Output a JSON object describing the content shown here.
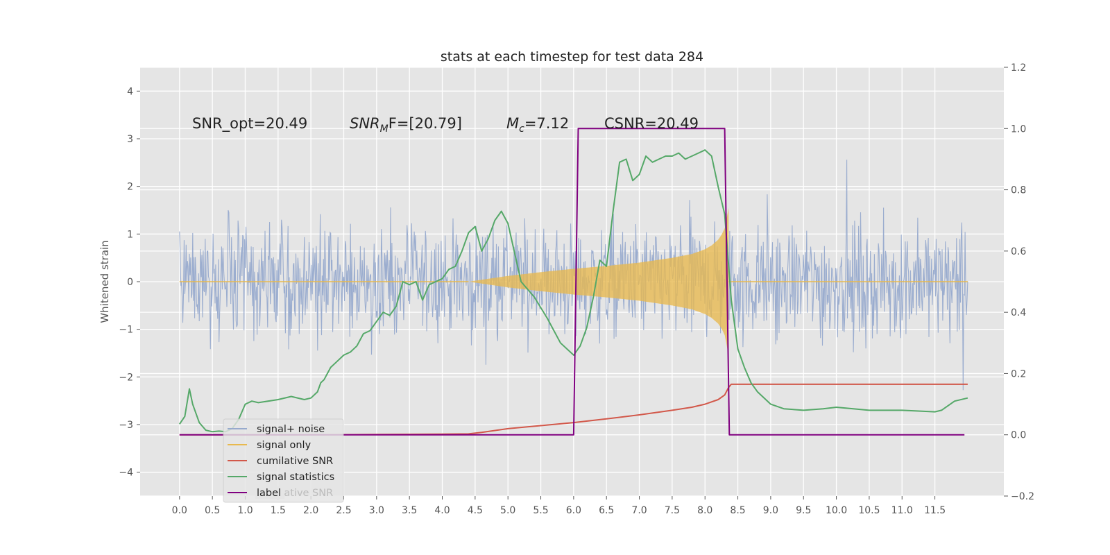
{
  "chart_data": {
    "type": "line",
    "title": "stats at each timestep for test data 284",
    "ylabel": "Whitened strain",
    "xlim": [
      -0.6,
      12.55
    ],
    "ylim": [
      -4.5,
      4.5
    ],
    "y2lim": [
      -0.2,
      1.2
    ],
    "x_ticks": [
      0.0,
      0.5,
      1.0,
      1.5,
      2.0,
      2.5,
      3.0,
      3.5,
      4.0,
      4.5,
      5.0,
      5.5,
      6.0,
      6.5,
      7.0,
      7.5,
      8.0,
      8.5,
      9.0,
      9.5,
      10.0,
      10.5,
      11.0,
      11.5
    ],
    "y_ticks": [
      -4,
      -3,
      -2,
      -1,
      0,
      1,
      2,
      3,
      4
    ],
    "y2_ticks": [
      -0.2,
      0.0,
      0.2,
      0.4,
      0.6,
      0.8,
      1.0,
      1.2
    ],
    "x_tick_labels": [
      "0.0",
      "0.5",
      "1.0",
      "1.5",
      "2.0",
      "2.5",
      "3.0",
      "3.5",
      "4.0",
      "4.5",
      "5.0",
      "5.5",
      "6.0",
      "6.5",
      "7.0",
      "7.5",
      "8.0",
      "8.5",
      "9.0",
      "9.5",
      "10.0",
      "10.5",
      "11.0",
      "11.5"
    ],
    "y_tick_labels": [
      "−4",
      "−3",
      "−2",
      "−1",
      "0",
      "1",
      "2",
      "3",
      "4"
    ],
    "y2_tick_labels": [
      "−0.2",
      "0.0",
      "0.2",
      "0.4",
      "0.6",
      "0.8",
      "1.0",
      "1.2"
    ],
    "grid": true,
    "annotations": {
      "snr_opt": "SNR_opt=20.49",
      "snr_mf_main": "SNR",
      "snr_mf_sub": "M",
      "snr_mf_rest": "F=[20.79]",
      "mc_main": "M",
      "mc_sub": "c",
      "mc_rest": "=7.12",
      "csnr": "CSNR=20.49"
    },
    "legend": {
      "placement": "lower-left",
      "entries": [
        "signal+ noise",
        "signal only",
        "cumilative SNR",
        "signal statistics",
        "label"
      ],
      "ghost_text": "cumilative SNR"
    },
    "series": [
      {
        "name": "signal+ noise",
        "axis": "left",
        "color": "#97aacd",
        "description": "whitened noisy strain, amplitude within about ±3.2",
        "x_range": [
          0.0,
          12.0
        ]
      },
      {
        "name": "signal only",
        "axis": "left",
        "color": "#e8b94e",
        "envelope": {
          "x": [
            4.4,
            5.0,
            5.5,
            6.0,
            6.5,
            7.0,
            7.5,
            7.8,
            8.0,
            8.1,
            8.2,
            8.25,
            8.3,
            8.36
          ],
          "amp": [
            0.0,
            0.12,
            0.2,
            0.27,
            0.33,
            0.4,
            0.5,
            0.58,
            0.68,
            0.76,
            0.88,
            0.98,
            1.12,
            1.55
          ]
        }
      },
      {
        "name": "cumilative SNR",
        "axis": "right",
        "color": "#d2584a",
        "x": [
          0.0,
          1.0,
          2.0,
          3.0,
          4.0,
          4.4,
          4.6,
          5.0,
          5.5,
          6.0,
          6.5,
          7.0,
          7.5,
          7.8,
          8.0,
          8.2,
          8.3,
          8.36,
          8.4,
          12.0
        ],
        "values": [
          0.0,
          0.0,
          0.0,
          0.001,
          0.002,
          0.003,
          0.008,
          0.02,
          0.03,
          0.04,
          0.052,
          0.065,
          0.08,
          0.09,
          0.1,
          0.115,
          0.13,
          0.155,
          0.165,
          0.165
        ]
      },
      {
        "name": "signal statistics",
        "axis": "right",
        "color": "#55a868",
        "x": [
          0.0,
          0.08,
          0.15,
          0.2,
          0.3,
          0.4,
          0.5,
          0.6,
          0.7,
          0.8,
          0.9,
          1.0,
          1.1,
          1.2,
          1.5,
          1.7,
          1.9,
          2.0,
          2.1,
          2.15,
          2.2,
          2.3,
          2.4,
          2.5,
          2.6,
          2.7,
          2.8,
          2.9,
          3.0,
          3.1,
          3.2,
          3.3,
          3.4,
          3.5,
          3.6,
          3.7,
          3.8,
          3.9,
          4.0,
          4.1,
          4.2,
          4.3,
          4.4,
          4.5,
          4.6,
          4.7,
          4.8,
          4.9,
          5.0,
          5.2,
          5.4,
          5.6,
          5.8,
          6.0,
          6.1,
          6.2,
          6.3,
          6.4,
          6.5,
          6.6,
          6.7,
          6.8,
          6.9,
          7.0,
          7.1,
          7.2,
          7.3,
          7.4,
          7.5,
          7.6,
          7.7,
          7.8,
          7.9,
          8.0,
          8.1,
          8.2,
          8.3,
          8.4,
          8.5,
          8.6,
          8.7,
          8.8,
          9.0,
          9.2,
          9.5,
          9.8,
          10.0,
          10.5,
          11.0,
          11.5,
          11.6,
          11.8,
          12.0
        ],
        "values": [
          0.035,
          0.06,
          0.15,
          0.1,
          0.04,
          0.015,
          0.01,
          0.012,
          0.01,
          0.02,
          0.05,
          0.1,
          0.11,
          0.105,
          0.115,
          0.125,
          0.115,
          0.12,
          0.14,
          0.17,
          0.18,
          0.22,
          0.24,
          0.26,
          0.27,
          0.29,
          0.33,
          0.34,
          0.37,
          0.4,
          0.39,
          0.42,
          0.5,
          0.49,
          0.5,
          0.44,
          0.49,
          0.5,
          0.51,
          0.54,
          0.55,
          0.6,
          0.66,
          0.68,
          0.6,
          0.64,
          0.7,
          0.73,
          0.69,
          0.5,
          0.45,
          0.38,
          0.3,
          0.26,
          0.29,
          0.35,
          0.45,
          0.57,
          0.55,
          0.73,
          0.89,
          0.9,
          0.83,
          0.85,
          0.91,
          0.89,
          0.9,
          0.91,
          0.91,
          0.92,
          0.9,
          0.91,
          0.92,
          0.93,
          0.91,
          0.81,
          0.72,
          0.44,
          0.28,
          0.22,
          0.17,
          0.14,
          0.1,
          0.085,
          0.08,
          0.085,
          0.09,
          0.08,
          0.08,
          0.075,
          0.08,
          0.11,
          0.12
        ]
      },
      {
        "name": "label",
        "axis": "right",
        "color": "#800080",
        "x": [
          0.0,
          6.0,
          6.07,
          8.3,
          8.37,
          11.95
        ],
        "values": [
          0.0,
          0.0,
          1.0,
          1.0,
          0.0,
          0.0
        ]
      }
    ]
  }
}
